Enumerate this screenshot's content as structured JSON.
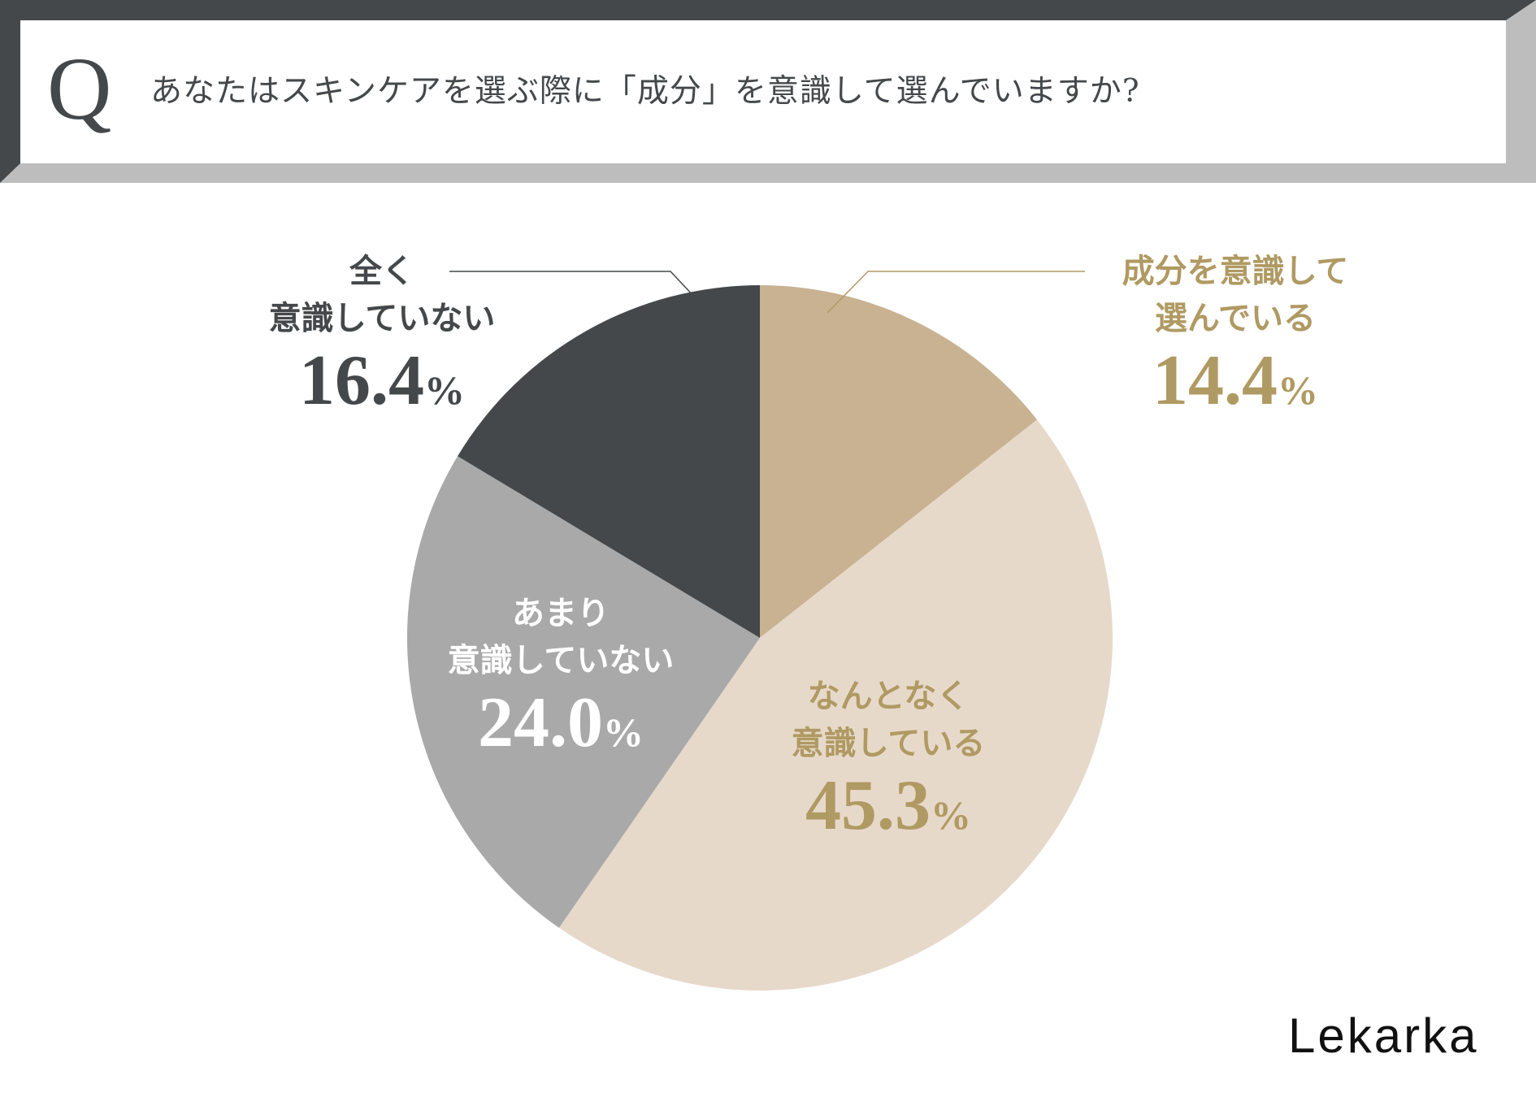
{
  "header": {
    "q_letter": "Q",
    "question": "あなたはスキンケアを選ぶ際に「成分」を意識して選んでいますか?"
  },
  "colors": {
    "dark": "#45484a",
    "light_gray": "#bdbdbd",
    "slice_tan": "#c8b292",
    "slice_beige": "#e7d9ca",
    "slice_gray": "#a9a9a9",
    "slice_dark": "#45484a",
    "label_gold": "#b09a63"
  },
  "chart_data": {
    "type": "pie",
    "title": "あなたはスキンケアを選ぶ際に「成分」を意識して選んでいますか?",
    "slices": [
      {
        "label": [
          "成分を意識して",
          "選んでいる"
        ],
        "value": 14.4,
        "display": "14.4",
        "unit": "%",
        "color": "#c8b292"
      },
      {
        "label": [
          "なんとなく",
          "意識している"
        ],
        "value": 45.3,
        "display": "45.3",
        "unit": "%",
        "color": "#e7d9ca"
      },
      {
        "label": [
          "あまり",
          "意識していない"
        ],
        "value": 24.0,
        "display": "24.0",
        "unit": "%",
        "color": "#a9a9a9"
      },
      {
        "label": [
          "全く",
          "意識していない"
        ],
        "value": 16.4,
        "display": "16.4",
        "unit": "%",
        "color": "#45484a"
      }
    ]
  },
  "brand": "Lekarka"
}
